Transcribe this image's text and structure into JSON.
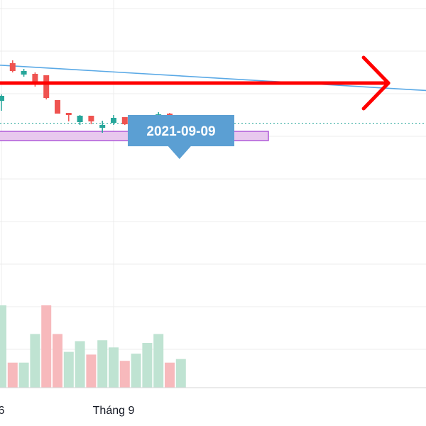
{
  "chart_data": {
    "type": "candlestick",
    "grid": true,
    "x_tick_labels": [
      {
        "label": "6",
        "index": 0
      },
      {
        "label": "Tháng 9",
        "index": 10
      }
    ],
    "candles": [
      {
        "o": 158,
        "h": 167,
        "l": 144,
        "c": 165
      },
      {
        "o": 211,
        "h": 215,
        "l": 198,
        "c": 200
      },
      {
        "o": 195,
        "h": 203,
        "l": 192,
        "c": 200
      },
      {
        "o": 196,
        "h": 198,
        "l": 178,
        "c": 184
      },
      {
        "o": 194,
        "h": 194,
        "l": 160,
        "c": 162
      },
      {
        "o": 159,
        "h": 159,
        "l": 140,
        "c": 140
      },
      {
        "o": 141,
        "h": 141,
        "l": 129,
        "c": 138
      },
      {
        "o": 128,
        "h": 138,
        "l": 124,
        "c": 137
      },
      {
        "o": 137,
        "h": 137,
        "l": 125,
        "c": 129
      },
      {
        "o": 120,
        "h": 130,
        "l": 113,
        "c": 124
      },
      {
        "o": 127,
        "h": 138,
        "l": 124,
        "c": 134
      },
      {
        "o": 135,
        "h": 135,
        "l": 124,
        "c": 125
      },
      {
        "o": 125,
        "h": 127,
        "l": 118,
        "c": 125
      },
      {
        "o": 126,
        "h": 135,
        "l": 121,
        "c": 134
      },
      {
        "o": 136,
        "h": 142,
        "l": 134,
        "c": 139
      },
      {
        "o": 140,
        "h": 141,
        "l": 128,
        "c": 129
      },
      {
        "o": 132,
        "h": 135,
        "l": 126,
        "c": 130
      }
    ],
    "volumes": [
      {
        "v": 92,
        "dir": "up"
      },
      {
        "v": 28,
        "dir": "down"
      },
      {
        "v": 28,
        "dir": "up"
      },
      {
        "v": 60,
        "dir": "up"
      },
      {
        "v": 92,
        "dir": "down"
      },
      {
        "v": 60,
        "dir": "down"
      },
      {
        "v": 40,
        "dir": "up"
      },
      {
        "v": 52,
        "dir": "up"
      },
      {
        "v": 37,
        "dir": "down"
      },
      {
        "v": 53,
        "dir": "up"
      },
      {
        "v": 45,
        "dir": "up"
      },
      {
        "v": 30,
        "dir": "down"
      },
      {
        "v": 38,
        "dir": "up"
      },
      {
        "v": 50,
        "dir": "up"
      },
      {
        "v": 60,
        "dir": "up"
      },
      {
        "v": 28,
        "dir": "down"
      },
      {
        "v": 32,
        "dir": "up"
      }
    ],
    "trendline": {
      "from": {
        "index": -1,
        "value": 209
      },
      "to": {
        "index": 38.4,
        "value": 172
      }
    },
    "horizontal_arrow": {
      "value": 183,
      "from_index": -1,
      "to_index": 34.5
    },
    "support_zone": {
      "from_value": 115,
      "to_value": 102,
      "from_index": -1,
      "to_index": 23.8
    },
    "current_price_line": {
      "value": 127
    },
    "tooltip": {
      "label": "2021-09-09",
      "index": 16
    },
    "colors": {
      "up": "#26a69a",
      "down": "#ef5350",
      "up_volume": "#bfe3d2",
      "down_volume": "#f7b9bc",
      "trendline": "#5aa9e6",
      "arrow": "#ff0000",
      "support_fill": "#e8c8ee",
      "support_border": "#b05ad8",
      "price_line": "#26a69a",
      "tooltip_bg": "#5b9fd3",
      "grid": "#ececec"
    }
  }
}
